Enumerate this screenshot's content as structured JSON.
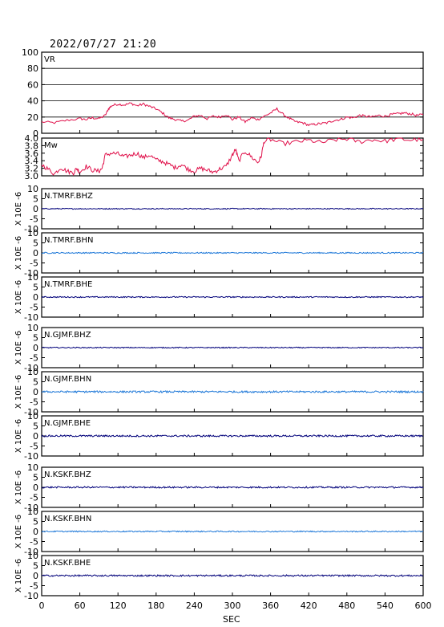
{
  "header": {
    "title": "2022/07/27 21:20"
  },
  "x_axis": {
    "label": "SEC"
  },
  "colors": {
    "vr_mw_line": "#e0104a",
    "trace_dark": "#00007a",
    "trace_light": "#1e78d8",
    "axis": "#000000"
  },
  "chart_data": [
    {
      "type": "line",
      "panel": "vr",
      "label": "VR",
      "xlim": [
        0,
        600
      ],
      "xticks": [
        "0",
        "60",
        "120",
        "180",
        "240",
        "300",
        "360",
        "420",
        "480",
        "540",
        "600"
      ],
      "ylim": [
        0,
        100
      ],
      "yticks": [
        "0",
        "20",
        "40",
        "60",
        "80",
        "100"
      ],
      "grid": true,
      "x": [
        0,
        20,
        40,
        60,
        70,
        80,
        90,
        100,
        105,
        110,
        120,
        130,
        140,
        150,
        160,
        170,
        180,
        190,
        200,
        210,
        220,
        230,
        240,
        250,
        260,
        270,
        280,
        290,
        300,
        310,
        320,
        330,
        340,
        350,
        360,
        370,
        380,
        390,
        400,
        410,
        420,
        430,
        440,
        450,
        460,
        470,
        480,
        490,
        500,
        510,
        520,
        530,
        540,
        550,
        560,
        570,
        580,
        590,
        600
      ],
      "y": [
        14,
        13,
        16,
        18,
        17,
        19,
        18,
        22,
        30,
        34,
        36,
        35,
        37,
        34,
        36,
        33,
        30,
        25,
        19,
        17,
        15,
        16,
        21,
        22,
        18,
        21,
        20,
        23,
        17,
        20,
        14,
        19,
        17,
        21,
        25,
        30,
        23,
        18,
        14,
        13,
        10,
        11,
        12,
        13,
        16,
        17,
        20,
        19,
        22,
        21,
        20,
        22,
        21,
        23,
        24,
        25,
        24,
        22,
        23
      ]
    },
    {
      "type": "line",
      "panel": "mw",
      "label": "Mw",
      "xlim": [
        0,
        600
      ],
      "ylim": [
        3.0,
        4.0
      ],
      "yticks": [
        "3.0",
        "3.2",
        "3.4",
        "3.6",
        "3.8",
        "4.0"
      ],
      "grid": false,
      "x": [
        0,
        10,
        20,
        30,
        40,
        50,
        55,
        60,
        70,
        80,
        90,
        95,
        100,
        110,
        120,
        130,
        140,
        150,
        160,
        170,
        180,
        190,
        200,
        210,
        220,
        230,
        240,
        250,
        260,
        270,
        280,
        290,
        300,
        305,
        310,
        320,
        330,
        340,
        345,
        350,
        360,
        380,
        400,
        420,
        440,
        460,
        480,
        500,
        520,
        540,
        560,
        580,
        600
      ],
      "y": [
        3.3,
        3.18,
        3.05,
        3.22,
        3.12,
        3.08,
        3.2,
        3.1,
        3.25,
        3.15,
        3.12,
        3.2,
        3.55,
        3.6,
        3.58,
        3.5,
        3.55,
        3.6,
        3.48,
        3.55,
        3.42,
        3.38,
        3.3,
        3.22,
        3.3,
        3.18,
        3.12,
        3.2,
        3.15,
        3.1,
        3.18,
        3.25,
        3.55,
        3.7,
        3.4,
        3.65,
        3.5,
        3.35,
        3.5,
        3.92,
        3.96,
        3.85,
        3.9,
        3.94,
        3.88,
        3.95,
        3.98,
        3.9,
        3.96,
        3.92,
        3.98,
        3.95,
        3.97
      ]
    },
    {
      "type": "line",
      "panel": "waveform",
      "label": "N.TMRF.BHZ",
      "color": "trace_dark",
      "ylim": [
        -10,
        10
      ],
      "yticks": [
        "-10",
        "-5",
        "0",
        "5",
        "10"
      ],
      "ylabel": "X 10E -6",
      "xlim": [
        0,
        600
      ],
      "noise_amplitude": 0.25
    },
    {
      "type": "line",
      "panel": "waveform",
      "label": "N.TMRF.BHN",
      "color": "trace_light",
      "ylim": [
        -10,
        10
      ],
      "yticks": [
        "-10",
        "-5",
        "0",
        "5",
        "10"
      ],
      "ylabel": "X 10E -6",
      "xlim": [
        0,
        600
      ],
      "noise_amplitude": 0.3
    },
    {
      "type": "line",
      "panel": "waveform",
      "label": "N.TMRF.BHE",
      "color": "trace_dark",
      "ylim": [
        -10,
        10
      ],
      "yticks": [
        "-10",
        "-5",
        "0",
        "5",
        "10"
      ],
      "ylabel": "X 10E -6",
      "xlim": [
        0,
        600
      ],
      "noise_amplitude": 0.3
    },
    {
      "type": "line",
      "panel": "waveform",
      "label": "N.GJMF.BHZ",
      "color": "trace_dark",
      "ylim": [
        -10,
        10
      ],
      "yticks": [
        "-10",
        "-5",
        "0",
        "5",
        "10"
      ],
      "ylabel": "X 10E -6",
      "xlim": [
        0,
        600
      ],
      "noise_amplitude": 0.25
    },
    {
      "type": "line",
      "panel": "waveform",
      "label": "N.GJMF.BHN",
      "color": "trace_light",
      "ylim": [
        -10,
        10
      ],
      "yticks": [
        "-10",
        "-5",
        "0",
        "5",
        "10"
      ],
      "ylabel": "X 10E -6",
      "xlim": [
        0,
        600
      ],
      "noise_amplitude": 0.45
    },
    {
      "type": "line",
      "panel": "waveform",
      "label": "N.GJMF.BHE",
      "color": "trace_dark",
      "ylim": [
        -10,
        10
      ],
      "yticks": [
        "-10",
        "-5",
        "0",
        "5",
        "10"
      ],
      "ylabel": "X 10E -6",
      "xlim": [
        0,
        600
      ],
      "noise_amplitude": 0.45
    },
    {
      "type": "line",
      "panel": "waveform",
      "label": "N.KSKF.BHZ",
      "color": "trace_dark",
      "ylim": [
        -10,
        10
      ],
      "yticks": [
        "-10",
        "-5",
        "0",
        "5",
        "10"
      ],
      "ylabel": "X 10E -6",
      "xlim": [
        0,
        600
      ],
      "noise_amplitude": 0.4
    },
    {
      "type": "line",
      "panel": "waveform",
      "label": "N.KSKF.BHN",
      "color": "trace_light",
      "ylim": [
        -10,
        10
      ],
      "yticks": [
        "-10",
        "-5",
        "0",
        "5",
        "10"
      ],
      "ylabel": "X 10E -6",
      "xlim": [
        0,
        600
      ],
      "noise_amplitude": 0.3
    },
    {
      "type": "line",
      "panel": "waveform",
      "label": "N.KSKF.BHE",
      "color": "trace_dark",
      "ylim": [
        -10,
        10
      ],
      "yticks": [
        "-10",
        "-5",
        "0",
        "5",
        "10"
      ],
      "ylabel": "X 10E -6",
      "xlim": [
        0,
        600
      ],
      "noise_amplitude": 0.4
    }
  ]
}
